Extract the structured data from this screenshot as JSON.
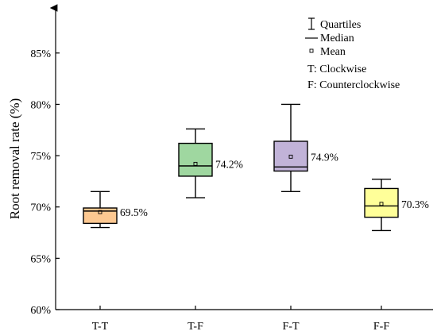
{
  "chart_data": {
    "type": "box",
    "ylabel": "Root removal rate (%)",
    "xlabel": "",
    "ylim": [
      60,
      88
    ],
    "yticks": [
      60,
      65,
      70,
      75,
      80,
      85
    ],
    "ytick_suffix": "%",
    "categories": [
      "T-T",
      "T-F",
      "F-T",
      "F-F"
    ],
    "boxes": [
      {
        "category": "T-T",
        "min": 68.0,
        "q1": 68.4,
        "median": 69.6,
        "q3": 69.9,
        "max": 71.5,
        "mean": 69.5,
        "mean_label": "69.5%",
        "fill": "#FDC891"
      },
      {
        "category": "T-F",
        "min": 70.9,
        "q1": 73.0,
        "median": 74.0,
        "q3": 76.2,
        "max": 77.6,
        "mean": 74.2,
        "mean_label": "74.2%",
        "fill": "#9FD7A0"
      },
      {
        "category": "F-T",
        "min": 71.5,
        "q1": 73.5,
        "median": 73.9,
        "q3": 76.4,
        "max": 80.0,
        "mean": 74.9,
        "mean_label": "74.9%",
        "fill": "#C1B3D8"
      },
      {
        "category": "F-F",
        "min": 67.7,
        "q1": 69.0,
        "median": 70.1,
        "q3": 71.8,
        "max": 72.7,
        "mean": 70.3,
        "mean_label": "70.3%",
        "fill": "#FFFF99"
      }
    ],
    "legend": {
      "position": "top-right",
      "items": [
        "Quartiles",
        "Median",
        "Mean"
      ],
      "notes": [
        "T: Clockwise",
        "F: Counterclockwise"
      ]
    },
    "grid": false
  }
}
